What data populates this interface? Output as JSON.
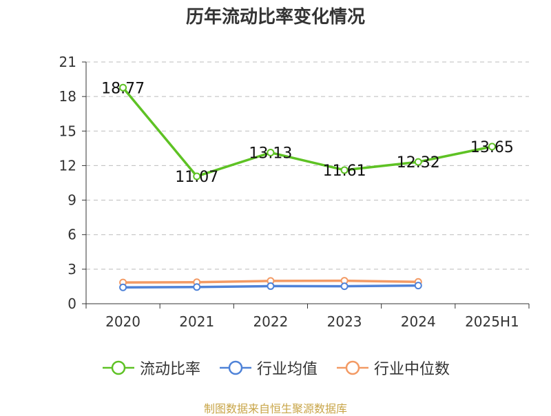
{
  "colors": {
    "current_ratio": "#5ec224",
    "industry_avg": "#4e82d8",
    "industry_median": "#f39a64",
    "grid": "#bbbbbb",
    "axis": "#333333",
    "source": "#c8a548"
  },
  "footer": {
    "source": "制图数据来自恒生聚源数据库"
  },
  "chart_data": {
    "type": "line",
    "title": "历年流动比率变化情况",
    "categories": [
      "2020",
      "2021",
      "2022",
      "2023",
      "2024",
      "2025H1"
    ],
    "ylim": [
      0,
      21
    ],
    "yticks": [
      0,
      3,
      6,
      9,
      12,
      15,
      18,
      21
    ],
    "grid": "horizontal dashed",
    "legend_position": "bottom",
    "series": [
      {
        "name": "流动比率",
        "color_key": "current_ratio",
        "values": [
          18.77,
          11.07,
          13.13,
          11.61,
          12.32,
          13.65
        ],
        "labels": [
          "18.77",
          "11.07",
          "13.13",
          "11.61",
          "12.32",
          "13.65"
        ]
      },
      {
        "name": "行业均值",
        "color_key": "industry_avg",
        "values": [
          1.42,
          1.45,
          1.53,
          1.52,
          1.58,
          null
        ]
      },
      {
        "name": "行业中位数",
        "color_key": "industry_median",
        "values": [
          1.85,
          1.87,
          1.98,
          2.0,
          1.9,
          null
        ]
      }
    ]
  }
}
